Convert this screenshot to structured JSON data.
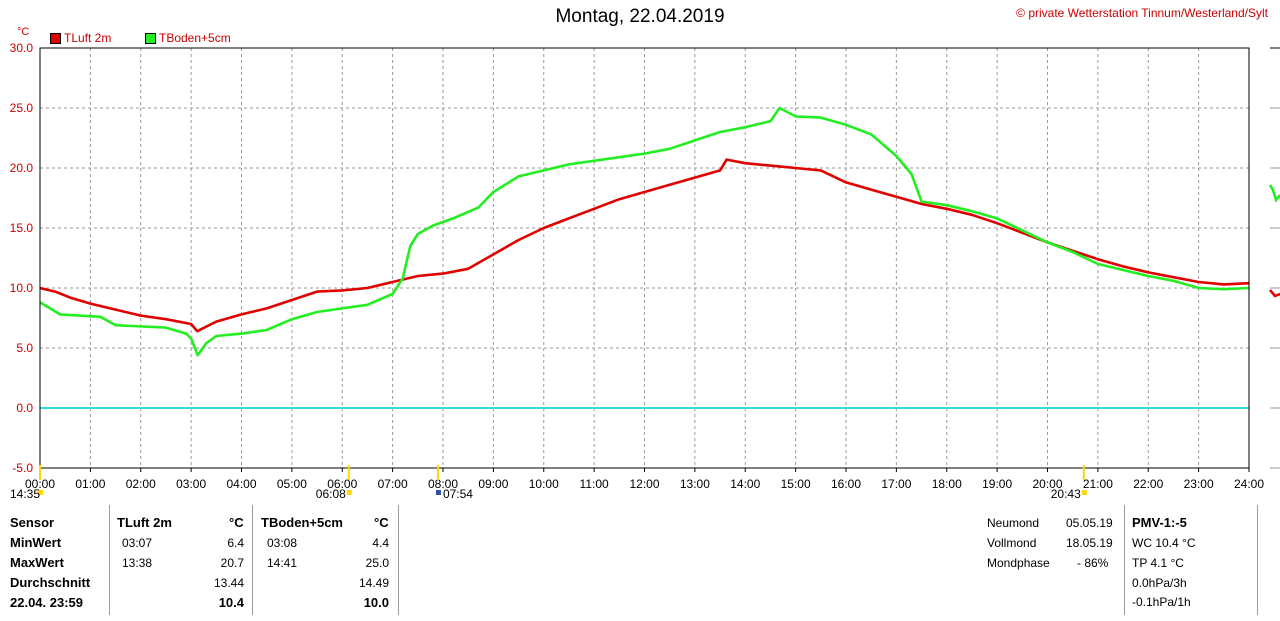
{
  "header": {
    "title": "Montag, 22.04.2019",
    "copyright": "© private Wetterstation Tinnum/Westerland/Sylt",
    "y_unit": "°C"
  },
  "colors": {
    "tluft": "#e00000",
    "tboden": "#22ee22",
    "zero_line": "#33dddd",
    "grid": "#9a9a9a",
    "label_red": "#cc0000"
  },
  "chart_data": {
    "type": "line",
    "ylim": [
      -5,
      30
    ],
    "xlim_hours": [
      0,
      24
    ],
    "grid": true,
    "yticks": [
      "30.0",
      "25.0",
      "20.0",
      "15.0",
      "10.0",
      "5.0",
      "0.0",
      "-5.0"
    ],
    "xticks": [
      "00:00",
      "01:00",
      "02:00",
      "03:00",
      "04:00",
      "05:00",
      "06:00",
      "07:00",
      "08:00",
      "09:00",
      "10:00",
      "11:00",
      "12:00",
      "13:00",
      "14:00",
      "15:00",
      "16:00",
      "17:00",
      "18:00",
      "19:00",
      "20:00",
      "21:00",
      "22:00",
      "23:00",
      "24:00"
    ],
    "series": [
      {
        "name": "TLuft 2m",
        "x": [
          0,
          0.3,
          0.6,
          1,
          1.5,
          2,
          2.5,
          3.0,
          3.12,
          3.5,
          4,
          4.5,
          5,
          5.5,
          6,
          6.5,
          7,
          7.5,
          8,
          8.5,
          9,
          9.5,
          10,
          10.5,
          11,
          11.5,
          12,
          12.5,
          13,
          13.5,
          13.63,
          14,
          14.5,
          15,
          15.5,
          16,
          16.5,
          17,
          17.5,
          18,
          18.5,
          19,
          19.5,
          20,
          20.5,
          21,
          21.5,
          22,
          22.5,
          23,
          23.5,
          24
        ],
        "values": [
          10.0,
          9.7,
          9.2,
          8.7,
          8.2,
          7.7,
          7.4,
          7.0,
          6.4,
          7.2,
          7.8,
          8.3,
          9.0,
          9.7,
          9.8,
          10.0,
          10.5,
          11.0,
          11.2,
          11.6,
          12.8,
          14.0,
          15.0,
          15.8,
          16.6,
          17.4,
          18.0,
          18.6,
          19.2,
          19.8,
          20.7,
          20.4,
          20.2,
          20.0,
          19.8,
          18.8,
          18.2,
          17.6,
          17.0,
          16.6,
          16.1,
          15.4,
          14.6,
          13.8,
          13.1,
          12.4,
          11.8,
          11.3,
          10.9,
          10.5,
          10.3,
          10.4
        ]
      },
      {
        "name": "TBoden+5cm",
        "x": [
          0,
          0.2,
          0.4,
          1.2,
          1.5,
          2.5,
          2.9,
          3.0,
          3.13,
          3.3,
          3.5,
          4.0,
          4.5,
          5.0,
          5.5,
          6.0,
          6.5,
          7.0,
          7.2,
          7.35,
          7.5,
          7.8,
          8.2,
          8.7,
          9.0,
          9.5,
          10,
          10.5,
          11,
          11.5,
          12,
          12.5,
          13,
          13.5,
          14,
          14.5,
          14.68,
          15,
          15.5,
          16,
          16.5,
          17,
          17.3,
          17.5,
          18,
          18.5,
          19,
          19.5,
          20,
          20.5,
          21,
          21.5,
          22,
          22.5,
          23,
          23.5,
          24
        ],
        "values": [
          8.8,
          8.3,
          7.8,
          7.6,
          6.9,
          6.7,
          6.2,
          5.8,
          4.4,
          5.4,
          6.0,
          6.2,
          6.5,
          7.4,
          8.0,
          8.3,
          8.6,
          9.5,
          10.8,
          13.5,
          14.5,
          15.2,
          15.8,
          16.7,
          18.0,
          19.3,
          19.8,
          20.3,
          20.6,
          20.9,
          21.2,
          21.6,
          22.3,
          23.0,
          23.4,
          23.9,
          25.0,
          24.3,
          24.2,
          23.6,
          22.8,
          21.0,
          19.5,
          17.2,
          16.9,
          16.4,
          15.8,
          14.8,
          13.8,
          13.0,
          12.0,
          11.5,
          11.0,
          10.6,
          10.0,
          9.9,
          10.0
        ]
      }
    ],
    "time_markers": [
      {
        "label": "14:35",
        "hour": 0.0
      },
      {
        "label": "06:08",
        "hour": 6.13
      },
      {
        "label": "07:54",
        "hour": 7.9
      },
      {
        "label": "20:43",
        "hour": 20.72
      }
    ]
  },
  "stats": {
    "row_labels": [
      "Sensor",
      "MinWert",
      "MaxWert",
      "Durchschnitt",
      "22.04. 23:59"
    ],
    "tluft": {
      "header": "TLuft 2m",
      "unit": "°C",
      "min_time": "03:07",
      "min": "6.4",
      "max_time": "13:38",
      "max": "20.7",
      "avg": "13.44",
      "last": "10.4"
    },
    "tboden": {
      "header": "TBoden+5cm",
      "unit": "°C",
      "min_time": "03:08",
      "min": "4.4",
      "max_time": "14:41",
      "max": "25.0",
      "avg": "14.49",
      "last": "10.0"
    }
  },
  "moon": {
    "neumond_label": "Neumond",
    "neumond_date": "05.05.19",
    "vollmond_label": "Vollmond",
    "vollmond_date": "18.05.19",
    "phase_label": "Mondphase",
    "phase_value": "- 86%"
  },
  "pmv": {
    "header": "PMV-1:-5",
    "wc": "WC 10.4 °C",
    "tp": "TP 4.1 °C",
    "p3h": "0.0hPa/3h",
    "p1h": "-0.1hPa/1h"
  }
}
